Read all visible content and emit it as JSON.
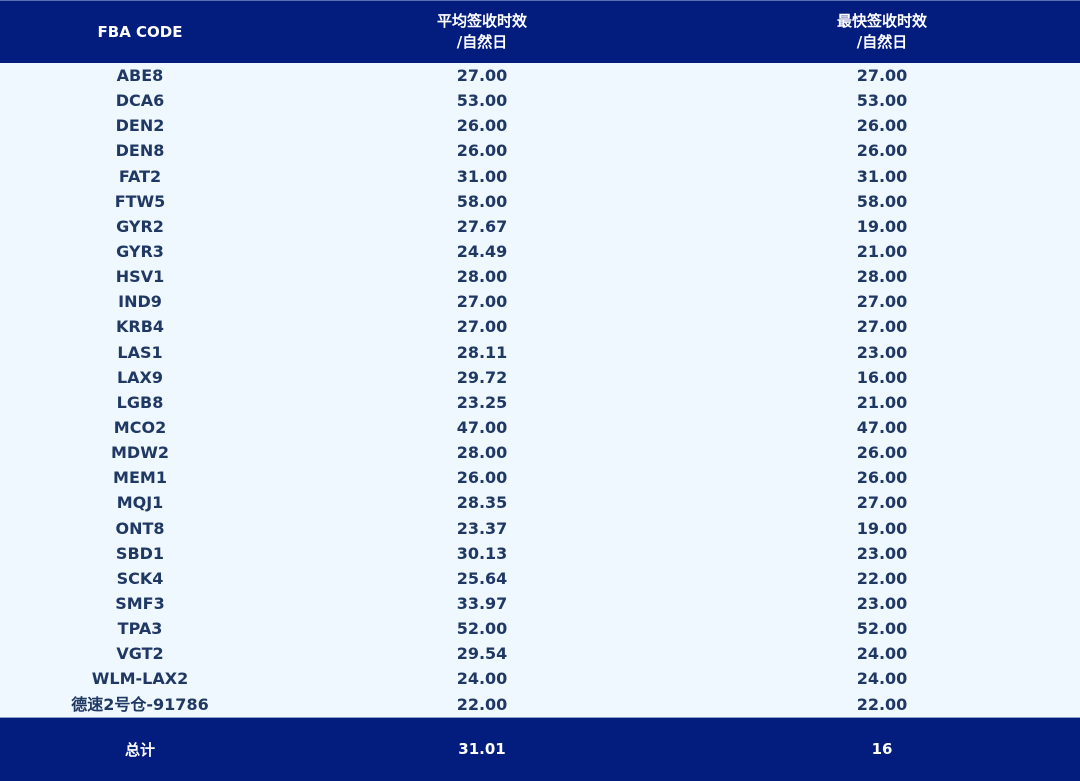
{
  "header": {
    "col1": "FBA CODE",
    "col2_line1": "平均签收时效",
    "col2_line2": "/自然日",
    "col3_line1": "最快签收时效",
    "col3_line2": "/自然日"
  },
  "rows": [
    {
      "code": "ABE8",
      "avg": "27.00",
      "fastest": "27.00"
    },
    {
      "code": "DCA6",
      "avg": "53.00",
      "fastest": "53.00"
    },
    {
      "code": "DEN2",
      "avg": "26.00",
      "fastest": "26.00"
    },
    {
      "code": "DEN8",
      "avg": "26.00",
      "fastest": "26.00"
    },
    {
      "code": "FAT2",
      "avg": "31.00",
      "fastest": "31.00"
    },
    {
      "code": "FTW5",
      "avg": "58.00",
      "fastest": "58.00"
    },
    {
      "code": "GYR2",
      "avg": "27.67",
      "fastest": "19.00"
    },
    {
      "code": "GYR3",
      "avg": "24.49",
      "fastest": "21.00"
    },
    {
      "code": "HSV1",
      "avg": "28.00",
      "fastest": "28.00"
    },
    {
      "code": "IND9",
      "avg": "27.00",
      "fastest": "27.00"
    },
    {
      "code": "KRB4",
      "avg": "27.00",
      "fastest": "27.00"
    },
    {
      "code": "LAS1",
      "avg": "28.11",
      "fastest": "23.00"
    },
    {
      "code": "LAX9",
      "avg": "29.72",
      "fastest": "16.00"
    },
    {
      "code": "LGB8",
      "avg": "23.25",
      "fastest": "21.00"
    },
    {
      "code": "MCO2",
      "avg": "47.00",
      "fastest": "47.00"
    },
    {
      "code": "MDW2",
      "avg": "28.00",
      "fastest": "26.00"
    },
    {
      "code": "MEM1",
      "avg": "26.00",
      "fastest": "26.00"
    },
    {
      "code": "MQJ1",
      "avg": "28.35",
      "fastest": "27.00"
    },
    {
      "code": "ONT8",
      "avg": "23.37",
      "fastest": "19.00"
    },
    {
      "code": "SBD1",
      "avg": "30.13",
      "fastest": "23.00"
    },
    {
      "code": "SCK4",
      "avg": "25.64",
      "fastest": "22.00"
    },
    {
      "code": "SMF3",
      "avg": "33.97",
      "fastest": "23.00"
    },
    {
      "code": "TPA3",
      "avg": "52.00",
      "fastest": "52.00"
    },
    {
      "code": "VGT2",
      "avg": "29.54",
      "fastest": "24.00"
    },
    {
      "code": "WLM-LAX2",
      "avg": "24.00",
      "fastest": "24.00"
    },
    {
      "code": "德速2号仓-91786",
      "avg": "22.00",
      "fastest": "22.00"
    }
  ],
  "footer": {
    "label": "总计",
    "avg": "31.01",
    "fastest": "16"
  },
  "colors": {
    "header_bg": "#031d7f",
    "body_bg": "#f0f8ff",
    "body_text": "#1f3864"
  }
}
